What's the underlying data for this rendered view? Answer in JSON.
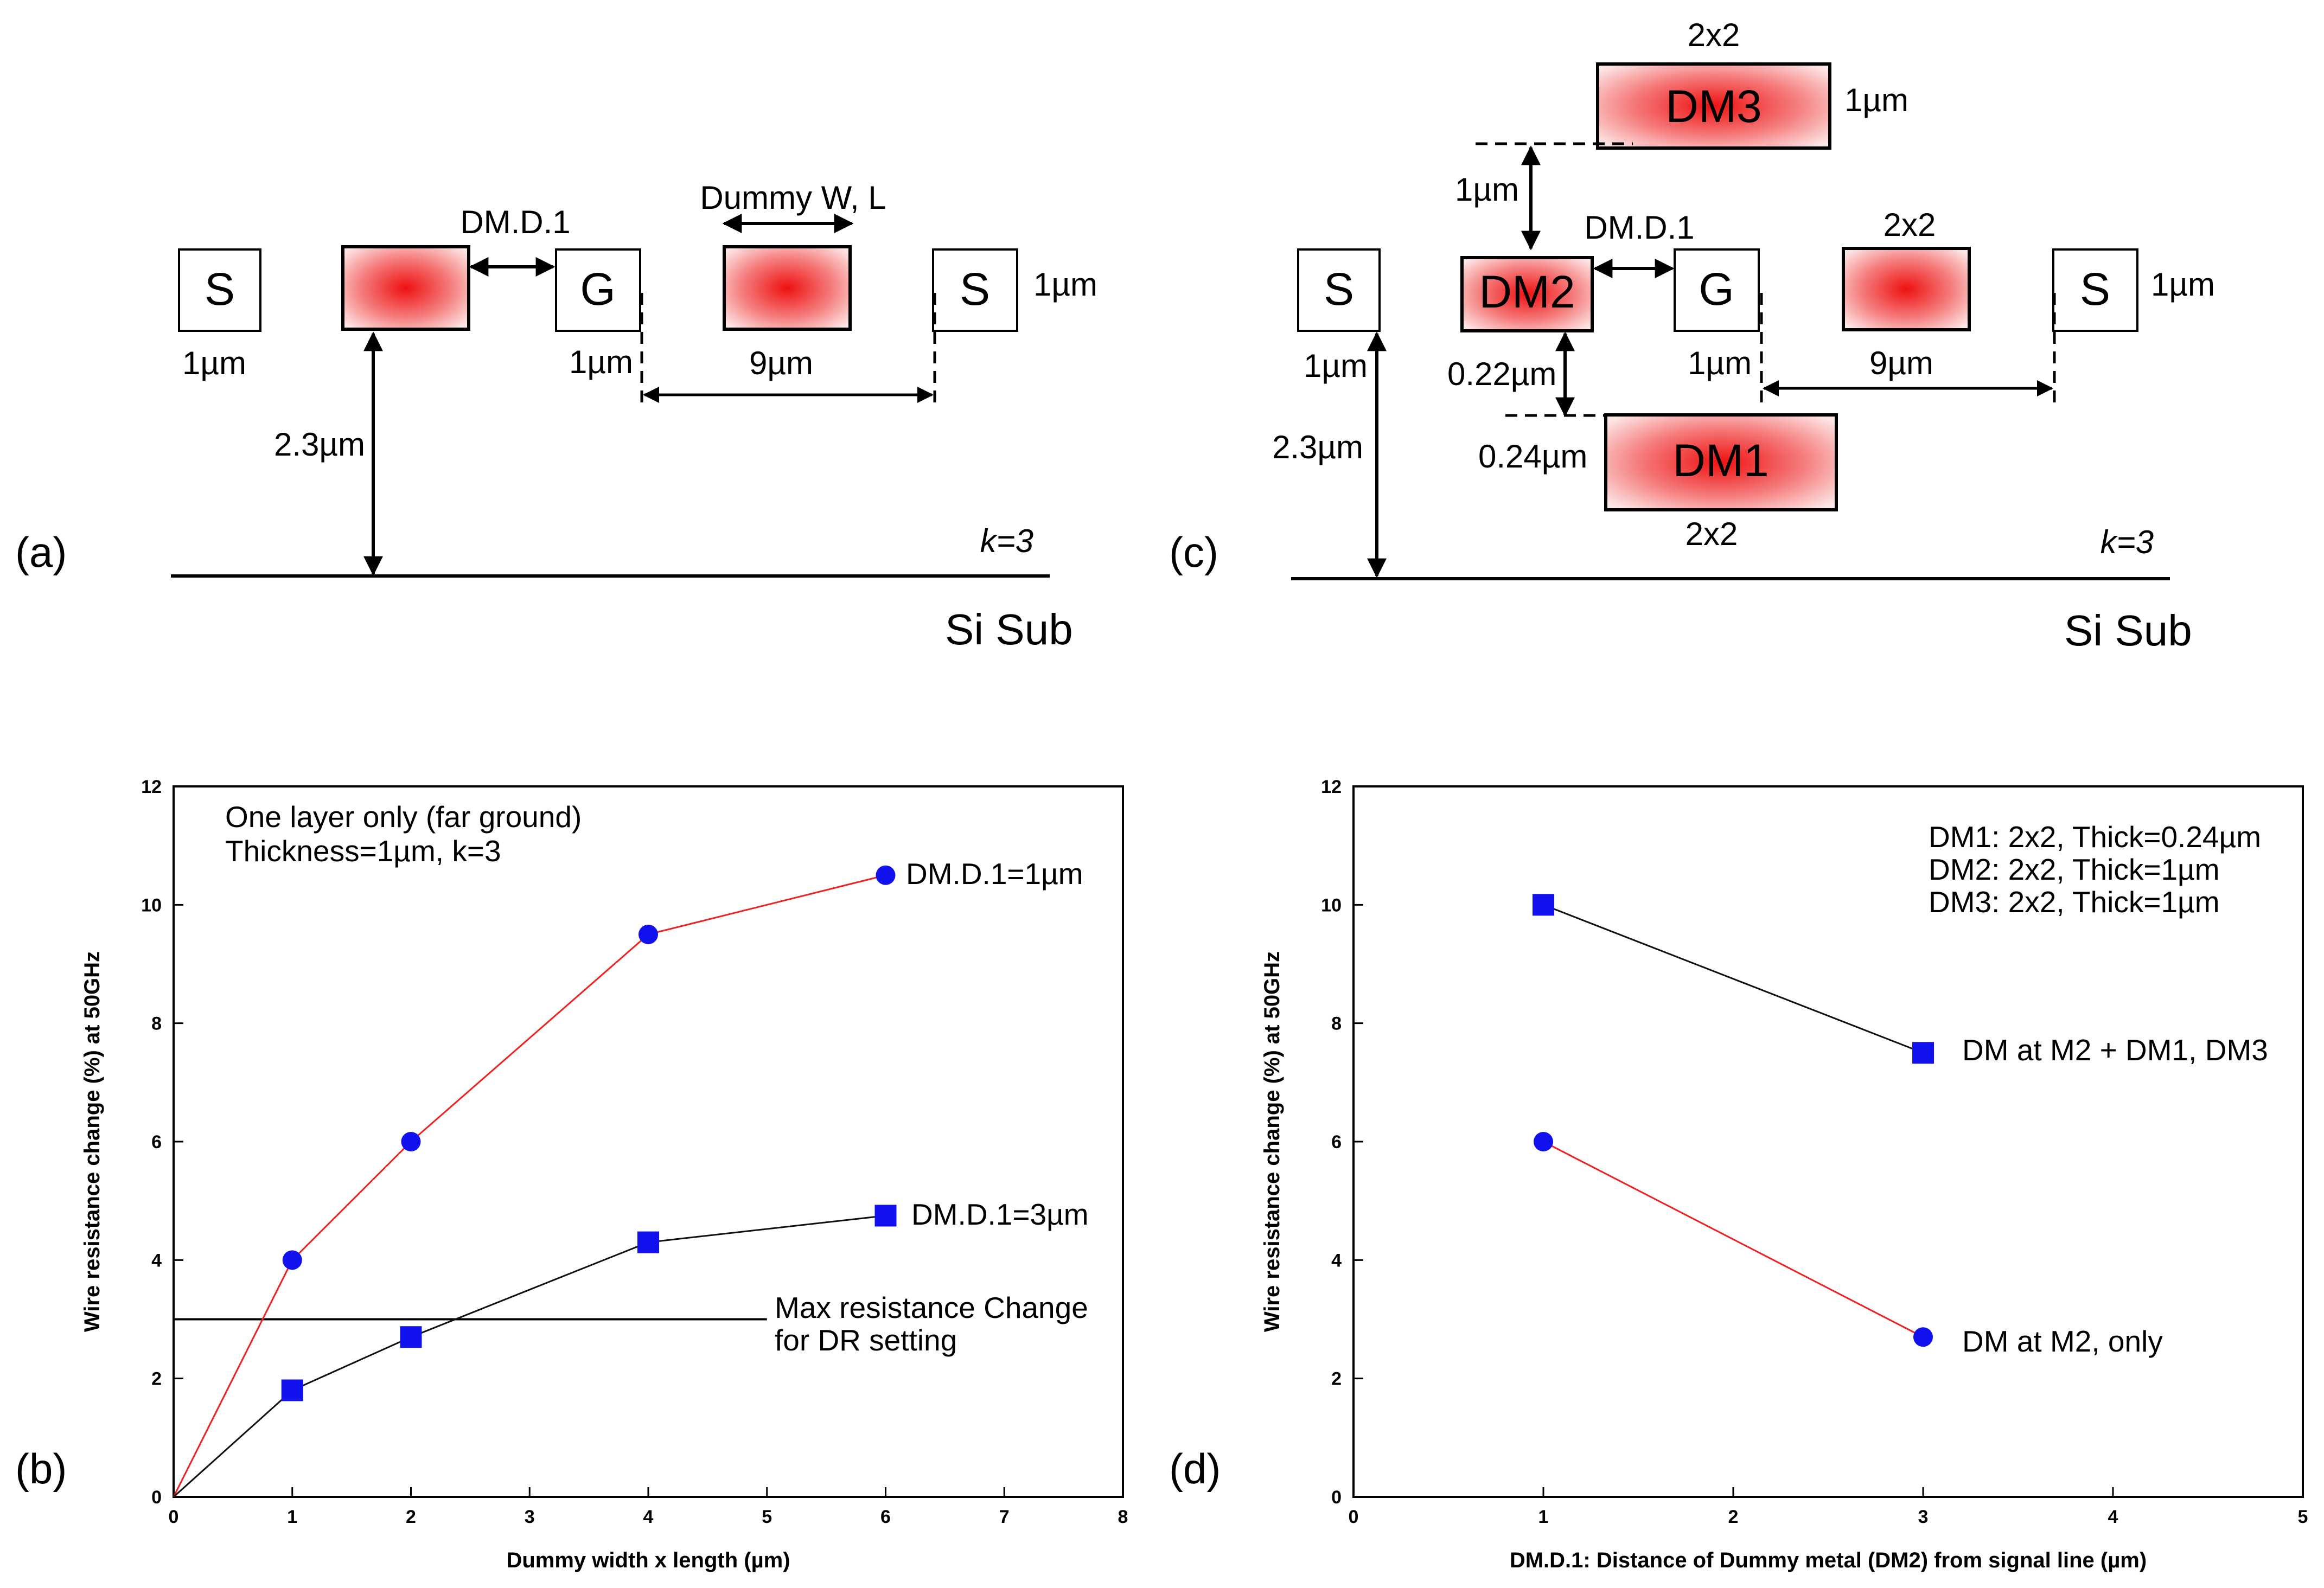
{
  "colors": {
    "red": "#ee2222",
    "blue": "#1111ee",
    "black": "#111111"
  },
  "diagram_a": {
    "panel_label": "(a)",
    "signal_left": "S",
    "ground": "G",
    "signal_right": "S",
    "dm_d1": "DM.D.1",
    "dummy_wl": "Dummy W, L",
    "w_left": "1µm",
    "w_ground": "1µm",
    "t_right": "1µm",
    "spacing": "9µm",
    "height": "2.3µm",
    "k": "k=3",
    "substrate": "Si Sub"
  },
  "diagram_c": {
    "panel_label": "(c)",
    "signal_left": "S",
    "ground": "G",
    "signal_right": "S",
    "dm1": "DM1",
    "dm2": "DM2",
    "dm3": "DM3",
    "dm3_size": "2x2",
    "dm3_thick": "1µm",
    "dm3_gap": "1µm",
    "dm_d1": "DM.D.1",
    "dummy_size": "2x2",
    "t_right": "1µm",
    "w_left": "1µm",
    "w_ground": "1µm",
    "gap_dm1": "0.22µm",
    "dm1_thick": "0.24µm",
    "dm1_size": "2x2",
    "spacing": "9µm",
    "height": "2.3µm",
    "k": "k=3",
    "substrate": "Si Sub"
  },
  "chart_data": [
    {
      "type": "line",
      "panel": "(b)",
      "xlabel": "Dummy width x length (µm)",
      "ylabel": "Wire resistance change (%) at 50GHz",
      "xlim": [
        0,
        8
      ],
      "ylim": [
        0,
        12
      ],
      "xticks": [
        "0",
        "1",
        "2",
        "3",
        "4",
        "5",
        "6",
        "7",
        "8"
      ],
      "yticks": [
        "0",
        "2",
        "4",
        "6",
        "8",
        "10",
        "12"
      ],
      "annotation": [
        "One layer only (far ground)",
        "Thickness=1µm, k=3"
      ],
      "threshold": {
        "y": 3,
        "label": [
          "Max resistance Change",
          "for DR setting"
        ]
      },
      "series": [
        {
          "name": "DM.D.1=1µm",
          "marker": "circle",
          "color": "red",
          "x": [
            0,
            1,
            2,
            4,
            6
          ],
          "y": [
            0,
            4.0,
            6.0,
            9.5,
            10.5
          ]
        },
        {
          "name": "DM.D.1=3µm",
          "marker": "square",
          "color": "black",
          "x": [
            0,
            1,
            2,
            4,
            6
          ],
          "y": [
            0,
            1.8,
            2.7,
            4.3,
            4.75
          ]
        }
      ]
    },
    {
      "type": "line",
      "panel": "(d)",
      "xlabel": "DM.D.1: Distance of Dummy metal (DM2) from signal line (µm)",
      "ylabel": "Wire resistance change (%) at 50GHz",
      "xlim": [
        0,
        5
      ],
      "ylim": [
        0,
        12
      ],
      "xticks": [
        "0",
        "1",
        "2",
        "3",
        "4",
        "5"
      ],
      "yticks": [
        "0",
        "2",
        "4",
        "6",
        "8",
        "10",
        "12"
      ],
      "annotation": [
        "DM1: 2x2, Thick=0.24µm",
        "DM2: 2x2, Thick=1µm",
        "DM3: 2x2, Thick=1µm"
      ],
      "series": [
        {
          "name": "DM at M2 + DM1, DM3",
          "marker": "square",
          "color": "black",
          "x": [
            1,
            3
          ],
          "y": [
            10.0,
            7.5
          ]
        },
        {
          "name": "DM at M2, only",
          "marker": "circle",
          "color": "red",
          "x": [
            1,
            3
          ],
          "y": [
            6.0,
            2.7
          ]
        }
      ]
    }
  ]
}
